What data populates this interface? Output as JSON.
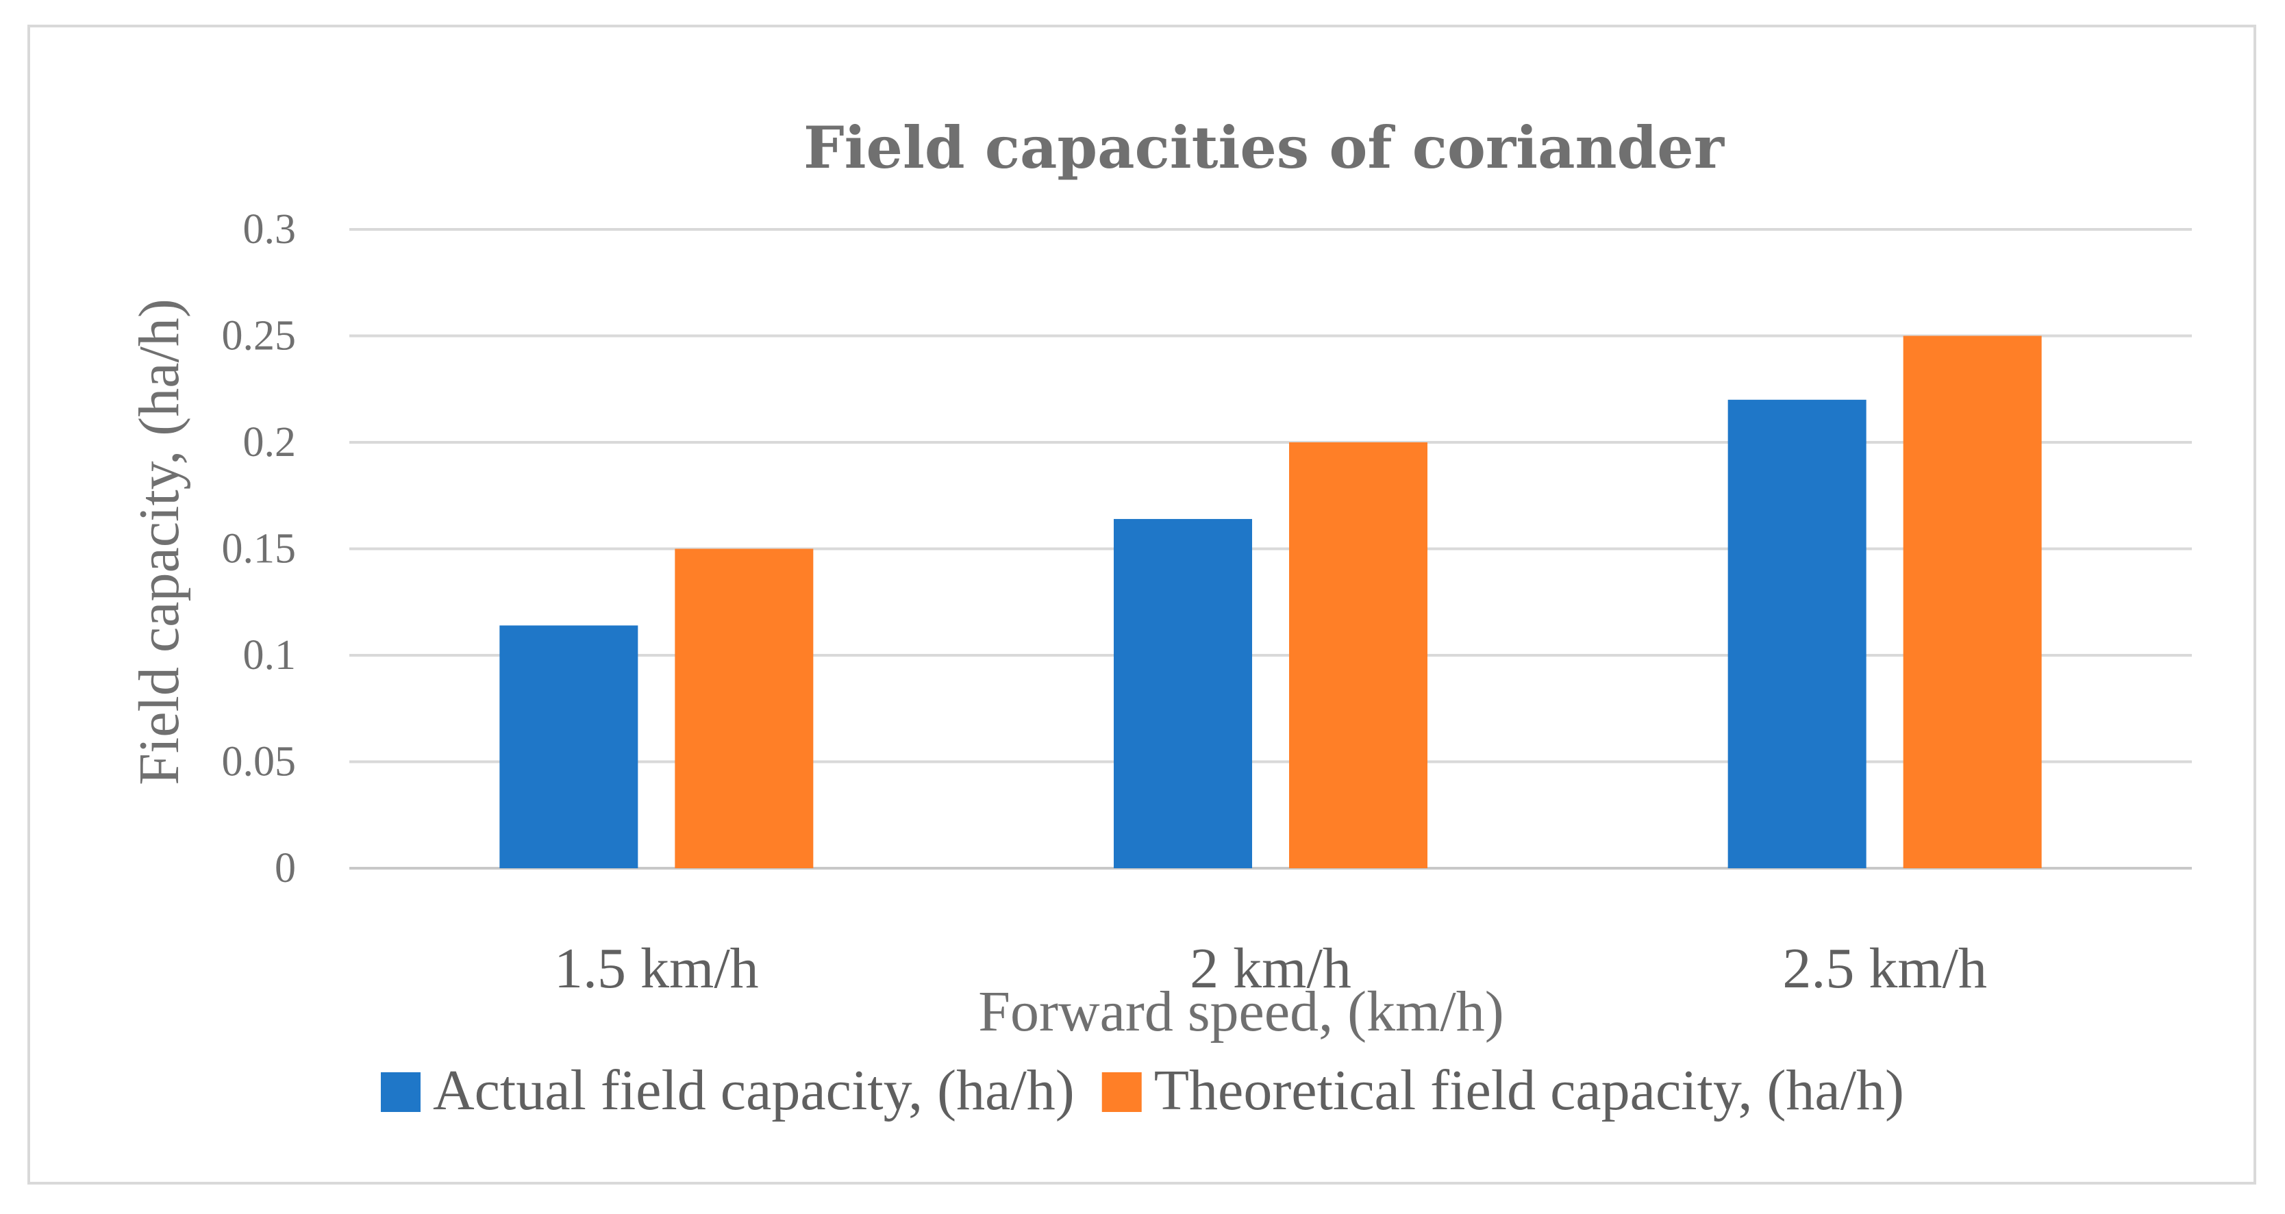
{
  "chart_data": {
    "type": "bar",
    "title": "Field capacities of coriander",
    "xlabel": "Forward speed, (km/h)",
    "ylabel": "Field capacity, (ha/h)",
    "categories": [
      "1.5 km/h",
      "2 km/h",
      "2.5 km/h"
    ],
    "series": [
      {
        "name": "Actual field capacity, (ha/h)",
        "values": [
          0.114,
          0.164,
          0.22
        ],
        "color": "#1f77c8"
      },
      {
        "name": "Theoretical field capacity, (ha/h)",
        "values": [
          0.15,
          0.2,
          0.25
        ],
        "color": "#ff7f27"
      }
    ],
    "ylim": [
      0,
      0.3
    ],
    "yticks": [
      "0",
      "0.05",
      "0.1",
      "0.15",
      "0.2",
      "0.25",
      "0.3"
    ],
    "grid": true,
    "legend_position": "bottom"
  }
}
